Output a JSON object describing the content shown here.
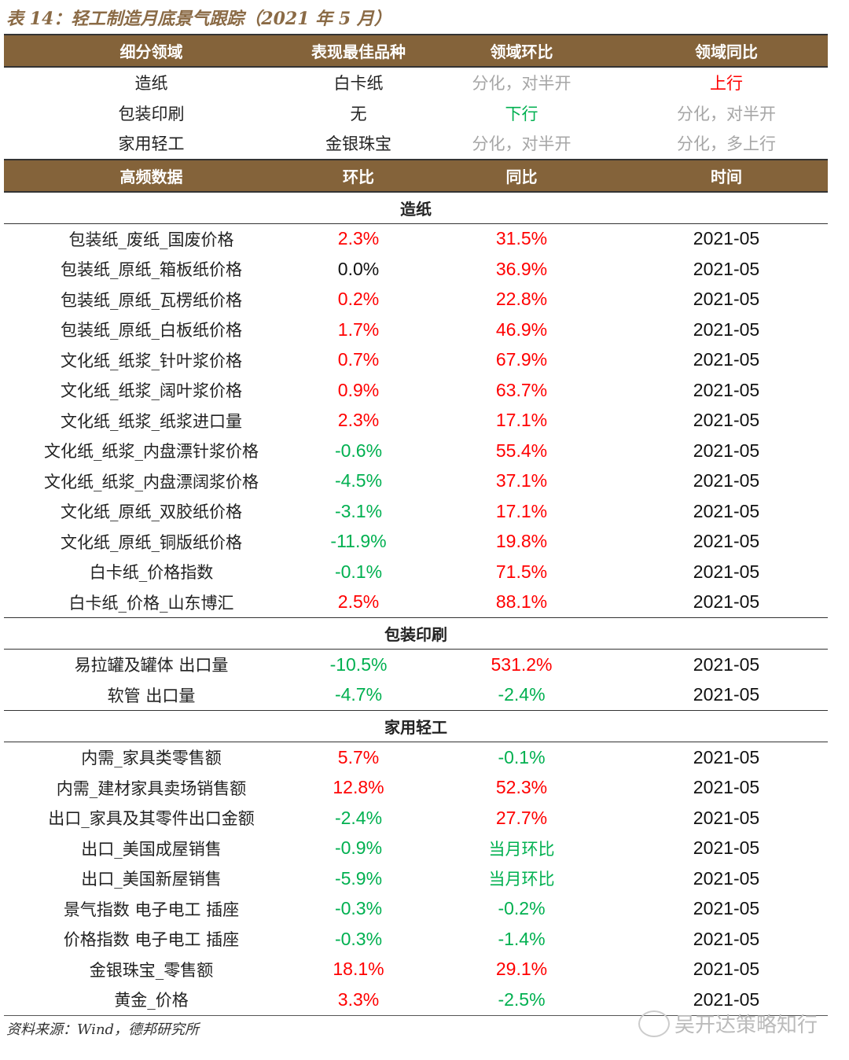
{
  "title": "表 14：轻工制造月底景气跟踪（2021 年 5 月）",
  "summary": {
    "headers": [
      "细分领域",
      "表现最佳品种",
      "领域环比",
      "领域同比"
    ],
    "rows": [
      {
        "cells": [
          "造纸",
          "白卡纸",
          "分化，对半开",
          "上行"
        ],
        "colors": [
          "",
          "",
          "gray",
          "red"
        ]
      },
      {
        "cells": [
          "包装印刷",
          "无",
          "下行",
          "分化，对半开"
        ],
        "colors": [
          "",
          "",
          "green",
          "gray"
        ]
      },
      {
        "cells": [
          "家用轻工",
          "金银珠宝",
          "分化，对半开",
          "分化，多上行"
        ],
        "colors": [
          "",
          "",
          "gray",
          "gray"
        ]
      }
    ]
  },
  "detail": {
    "headers": [
      "高频数据",
      "环比",
      "同比",
      "时间"
    ],
    "sections": [
      {
        "name": "造纸",
        "rows": [
          [
            "包装纸_废纸_国废价格",
            "2.3%",
            "31.5%",
            "2021-05"
          ],
          [
            "包装纸_原纸_箱板纸价格",
            "0.0%",
            "36.9%",
            "2021-05"
          ],
          [
            "包装纸_原纸_瓦楞纸价格",
            "0.2%",
            "22.8%",
            "2021-05"
          ],
          [
            "包装纸_原纸_白板纸价格",
            "1.7%",
            "46.9%",
            "2021-05"
          ],
          [
            "文化纸_纸浆_针叶浆价格",
            "0.7%",
            "67.9%",
            "2021-05"
          ],
          [
            "文化纸_纸浆_阔叶浆价格",
            "0.9%",
            "63.7%",
            "2021-05"
          ],
          [
            "文化纸_纸浆_纸浆进口量",
            "2.3%",
            "17.1%",
            "2021-05"
          ],
          [
            "文化纸_纸浆_内盘漂针浆价格",
            "-0.6%",
            "55.4%",
            "2021-05"
          ],
          [
            "文化纸_纸浆_内盘漂阔浆价格",
            "-4.5%",
            "37.1%",
            "2021-05"
          ],
          [
            "文化纸_原纸_双胶纸价格",
            "-3.1%",
            "17.1%",
            "2021-05"
          ],
          [
            "文化纸_原纸_铜版纸价格",
            "-11.9%",
            "19.8%",
            "2021-05"
          ],
          [
            "白卡纸_价格指数",
            "-0.1%",
            "71.5%",
            "2021-05"
          ],
          [
            "白卡纸_价格_山东博汇",
            "2.5%",
            "88.1%",
            "2021-05"
          ]
        ]
      },
      {
        "name": "包装印刷",
        "rows": [
          [
            "易拉罐及罐体 出口量",
            "-10.5%",
            "531.2%",
            "2021-05"
          ],
          [
            "软管 出口量",
            "-4.7%",
            "-2.4%",
            "2021-05"
          ]
        ]
      },
      {
        "name": "家用轻工",
        "rows": [
          [
            "内需_家具类零售额",
            "5.7%",
            "-0.1%",
            "2021-05"
          ],
          [
            "内需_建材家具卖场销售额",
            "12.8%",
            "52.3%",
            "2021-05"
          ],
          [
            "出口_家具及其零件出口金额",
            "-2.4%",
            "27.7%",
            "2021-05"
          ],
          [
            "出口_美国成屋销售",
            "-0.9%",
            "当月环比",
            "2021-05"
          ],
          [
            "出口_美国新屋销售",
            "-5.9%",
            "当月环比",
            "2021-05"
          ],
          [
            "景气指数 电子电工 插座",
            "-0.3%",
            "-0.2%",
            "2021-05"
          ],
          [
            "价格指数 电子电工 插座",
            "-0.3%",
            "-1.4%",
            "2021-05"
          ],
          [
            "金银珠宝_零售额",
            "18.1%",
            "29.1%",
            "2021-05"
          ],
          [
            "黄金_价格",
            "3.3%",
            "-2.5%",
            "2021-05"
          ]
        ]
      }
    ]
  },
  "source": "资料来源：Wind，德邦研究所",
  "watermark": "吴开达策略知行",
  "colors": {
    "header": "#84633a",
    "up": "#ff0000",
    "down": "#00b050",
    "neutral": "#a6a6a6"
  }
}
